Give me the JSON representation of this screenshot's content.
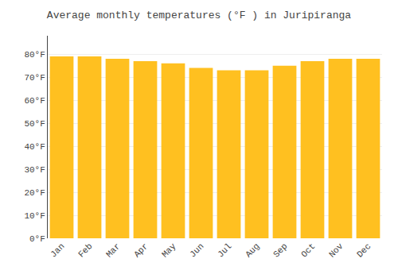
{
  "chart_data": {
    "type": "bar",
    "title": "Average monthly temperatures (°F ) in Juripiranga",
    "categories": [
      "Jan",
      "Feb",
      "Mar",
      "Apr",
      "May",
      "Jun",
      "Jul",
      "Aug",
      "Sep",
      "Oct",
      "Nov",
      "Dec"
    ],
    "values": [
      79,
      79,
      78,
      77,
      76,
      74,
      73,
      73,
      75,
      77,
      78,
      78
    ],
    "color": "#FFC020",
    "ylim": [
      0,
      88
    ],
    "yticks": [
      {
        "value": 0,
        "label": "0°F"
      },
      {
        "value": 10,
        "label": "10°F"
      },
      {
        "value": 20,
        "label": "20°F"
      },
      {
        "value": 30,
        "label": "30°F"
      },
      {
        "value": 40,
        "label": "40°F"
      },
      {
        "value": 50,
        "label": "50°F"
      },
      {
        "value": 60,
        "label": "60°F"
      },
      {
        "value": 70,
        "label": "70°F"
      },
      {
        "value": 80,
        "label": "80°F"
      }
    ],
    "grid": true
  }
}
